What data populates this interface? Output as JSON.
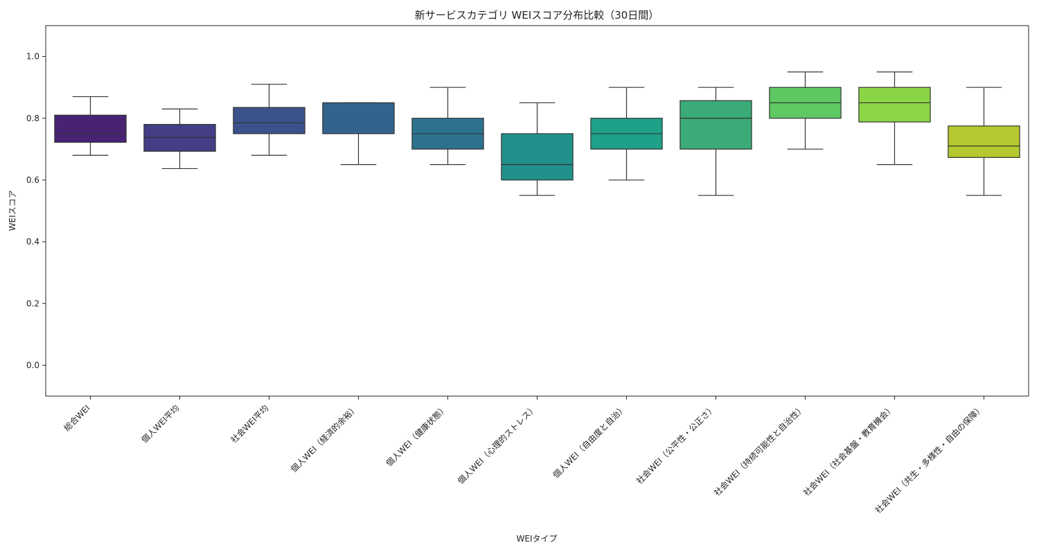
{
  "chart_data": {
    "type": "box",
    "title": "新サービスカテゴリ WEIスコア分布比較（30日間）",
    "xlabel": "WEIタイプ",
    "ylabel": "WEIスコア",
    "ylim": [
      -0.1,
      1.1
    ],
    "yticks": [
      0.0,
      0.2,
      0.4,
      0.6,
      0.8,
      1.0
    ],
    "ytick_labels": [
      "0.0",
      "0.2",
      "0.4",
      "0.6",
      "0.8",
      "1.0"
    ],
    "grid": false,
    "categories": [
      "総合WEI",
      "個人WEI平均",
      "社会WEI平均",
      "個人WEI（経済的余裕）",
      "個人WEI（健康状態）",
      "個人WEI（心理的ストレス）",
      "個人WEI（自由度と自治）",
      "社会WEI（公平性・公正さ）",
      "社会WEI（持続可能性と自治性）",
      "社会WEI（社会基盤・教育機会）",
      "社会WEI（共生・多様性・自由の保障）"
    ],
    "boxes": [
      {
        "whisker_low": 0.68,
        "q1": 0.722,
        "median": 0.75,
        "q3": 0.81,
        "whisker_high": 0.87,
        "color": "#482374"
      },
      {
        "whisker_low": 0.637,
        "q1": 0.693,
        "median": 0.738,
        "q3": 0.78,
        "whisker_high": 0.83,
        "color": "#433e85"
      },
      {
        "whisker_low": 0.68,
        "q1": 0.75,
        "median": 0.785,
        "q3": 0.835,
        "whisker_high": 0.91,
        "color": "#3b528b"
      },
      {
        "whisker_low": 0.65,
        "q1": 0.75,
        "median": 0.85,
        "q3": 0.85,
        "whisker_high": 0.85,
        "color": "#33638d"
      },
      {
        "whisker_low": 0.65,
        "q1": 0.7,
        "median": 0.75,
        "q3": 0.8,
        "whisker_high": 0.9,
        "color": "#2c728e"
      },
      {
        "whisker_low": 0.55,
        "q1": 0.6,
        "median": 0.65,
        "q3": 0.75,
        "whisker_high": 0.85,
        "color": "#21918c"
      },
      {
        "whisker_low": 0.6,
        "q1": 0.7,
        "median": 0.75,
        "q3": 0.8,
        "whisker_high": 0.9,
        "color": "#1fa088"
      },
      {
        "whisker_low": 0.55,
        "q1": 0.7,
        "median": 0.8,
        "q3": 0.857,
        "whisker_high": 0.9,
        "color": "#3bab78"
      },
      {
        "whisker_low": 0.7,
        "q1": 0.8,
        "median": 0.85,
        "q3": 0.9,
        "whisker_high": 0.95,
        "color": "#5ec962"
      },
      {
        "whisker_low": 0.65,
        "q1": 0.788,
        "median": 0.85,
        "q3": 0.9,
        "whisker_high": 0.95,
        "color": "#8bd646"
      },
      {
        "whisker_low": 0.55,
        "q1": 0.673,
        "median": 0.71,
        "q3": 0.775,
        "whisker_high": 0.9,
        "color": "#b5c82f"
      }
    ]
  }
}
